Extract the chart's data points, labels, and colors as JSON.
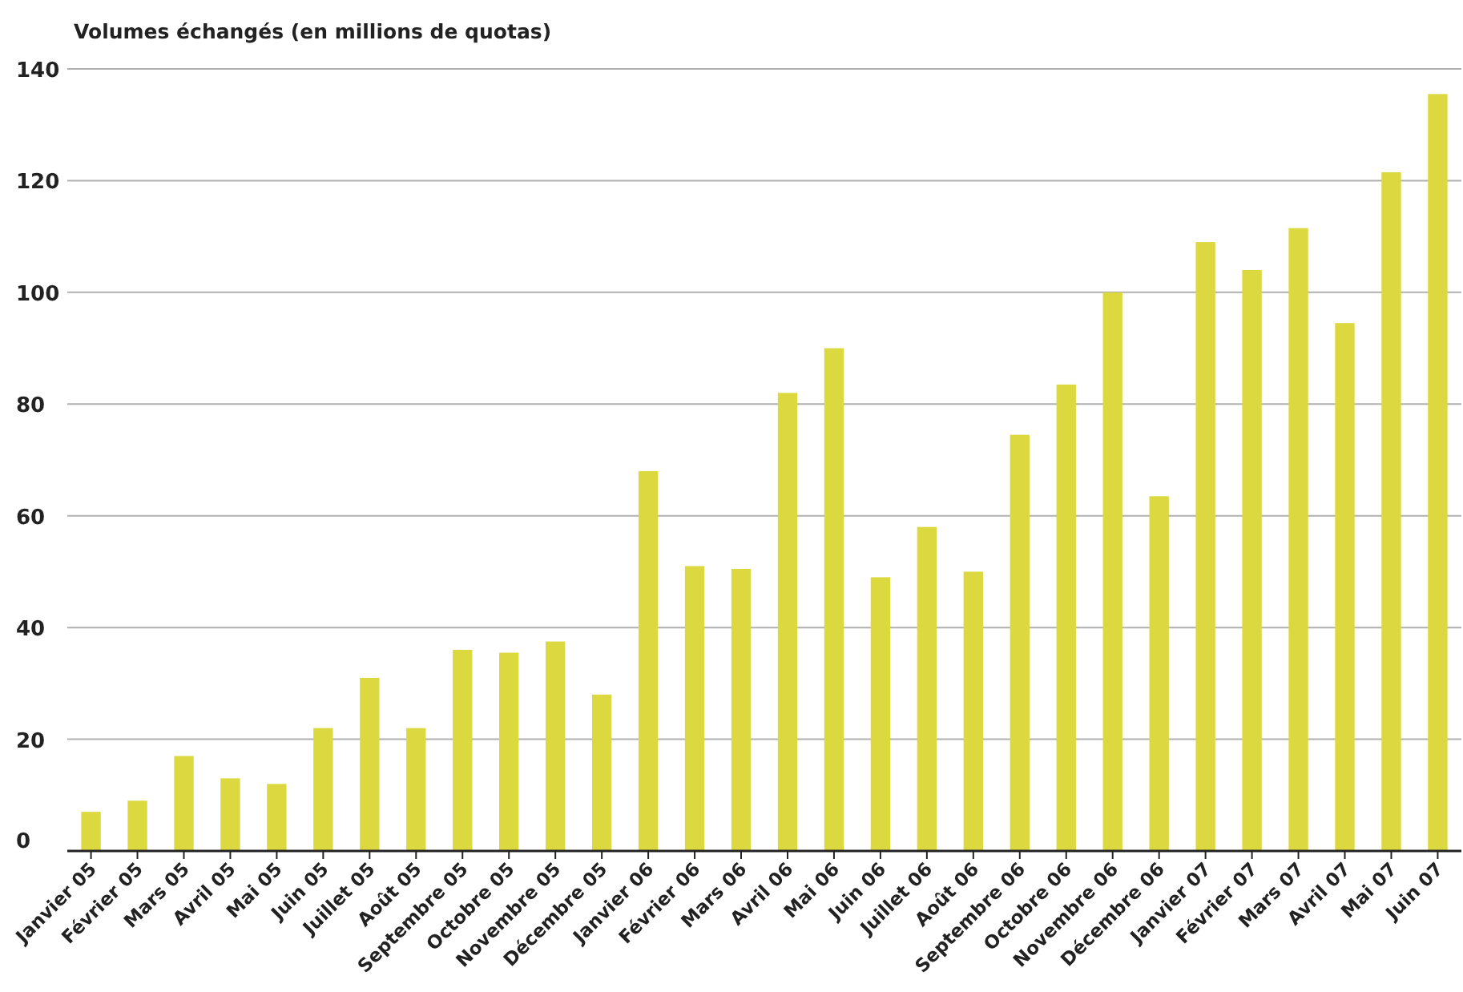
{
  "chart_data": {
    "type": "bar",
    "title": "Volumes échangés (en millions de quotas)",
    "categories": [
      "Janvier 05",
      "Février 05",
      "Mars 05",
      "Avril 05",
      "Mai 05",
      "Juin 05",
      "Juillet 05",
      "Août 05",
      "Septembre 05",
      "Octobre 05",
      "Novembre 05",
      "Décembre 05",
      "Janvier 06",
      "Février 06",
      "Mars 06",
      "Avril 06",
      "Mai 06",
      "Juin 06",
      "Juillet 06",
      "Août 06",
      "Septembre 06",
      "Octobre 06",
      "Novembre 06",
      "Décembre 06",
      "Janvier 07",
      "Février 07",
      "Mars 07",
      "Avril 07",
      "Mai 07",
      "Juin 07"
    ],
    "values": [
      7,
      9,
      17,
      13,
      12,
      22,
      31,
      22,
      36,
      35.5,
      37.5,
      28,
      68,
      51,
      50.5,
      82,
      90,
      49,
      58,
      50,
      74.5,
      83.5,
      100,
      63.5,
      109,
      104,
      111.5,
      94.5,
      121.5,
      135.5
    ],
    "color": "#dcd840",
    "ylim": [
      0,
      140
    ],
    "yticks": [
      0,
      20,
      40,
      60,
      80,
      100,
      120,
      140
    ],
    "grid": "y"
  }
}
